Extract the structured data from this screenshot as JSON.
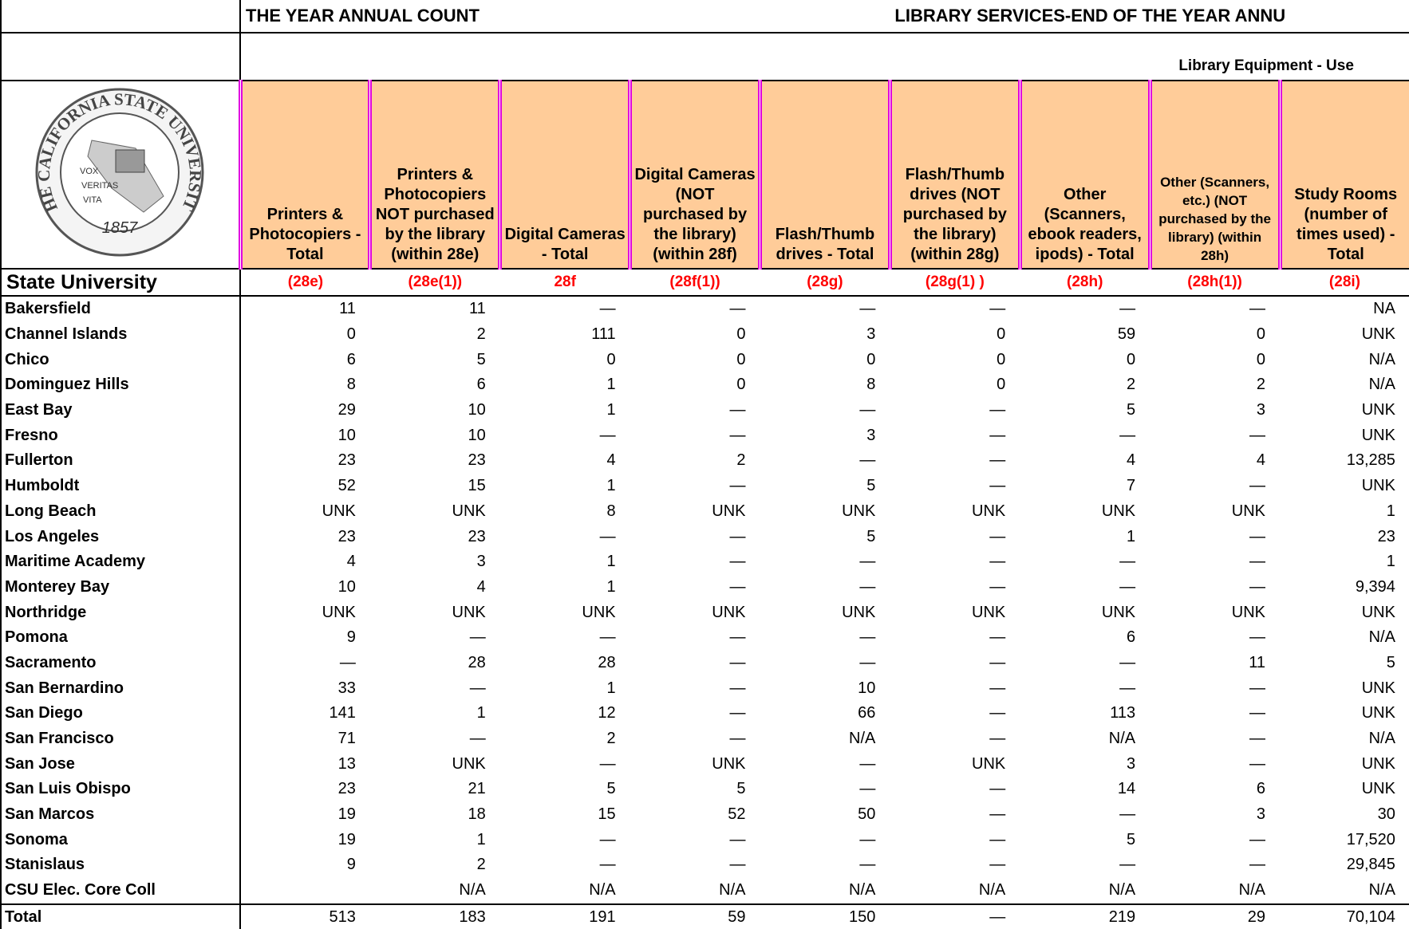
{
  "header": {
    "left_title": "THE YEAR ANNUAL COUNT",
    "right_title": "LIBRARY SERVICES-END OF THE YEAR ANNU",
    "section": "Library Equipment - Use"
  },
  "logo": {
    "ring": "THE CALIFORNIA STATE UNIVERSITY",
    "motto": [
      "VOX",
      "VERITAS",
      "VITA"
    ],
    "year": "1857"
  },
  "table": {
    "row_header": "State University",
    "columns": [
      {
        "label": "Printers & Photocopiers - Total",
        "code": "(28e)"
      },
      {
        "label": "Printers & Photocopiers NOT purchased by the library (within 28e)",
        "code": "(28e(1))"
      },
      {
        "label": "Digital Cameras - Total",
        "code": "28f"
      },
      {
        "label": "Digital Cameras (NOT purchased by the library) (within 28f)",
        "code": "(28f(1))"
      },
      {
        "label": "Flash/Thumb drives - Total",
        "code": "(28g)"
      },
      {
        "label": "Flash/Thumb drives (NOT purchased by the library) (within 28g)",
        "code": "(28g(1) )"
      },
      {
        "label": "Other (Scanners, ebook readers, ipods) - Total",
        "code": "(28h)"
      },
      {
        "label": "Other (Scanners, etc.) (NOT purchased by the library) (within 28h)",
        "code": "(28h(1))"
      },
      {
        "label": "Study Rooms (number of times used) - Total",
        "code": "(28i)"
      }
    ],
    "rows": [
      {
        "name": "Bakersfield",
        "values": [
          "11",
          "11",
          "—",
          "—",
          "—",
          "—",
          "—",
          "—",
          "NA"
        ]
      },
      {
        "name": "Channel Islands",
        "values": [
          "0",
          "2",
          "111",
          "0",
          "3",
          "0",
          "59",
          "0",
          "UNK"
        ]
      },
      {
        "name": "Chico",
        "values": [
          "6",
          "5",
          "0",
          "0",
          "0",
          "0",
          "0",
          "0",
          "N/A"
        ]
      },
      {
        "name": "Dominguez Hills",
        "values": [
          "8",
          "6",
          "1",
          "0",
          "8",
          "0",
          "2",
          "2",
          "N/A"
        ]
      },
      {
        "name": "East Bay",
        "values": [
          "29",
          "10",
          "1",
          "—",
          "—",
          "—",
          "5",
          "3",
          "UNK"
        ]
      },
      {
        "name": "Fresno",
        "values": [
          "10",
          "10",
          "—",
          "—",
          "3",
          "—",
          "—",
          "—",
          "UNK"
        ]
      },
      {
        "name": "Fullerton",
        "values": [
          "23",
          "23",
          "4",
          "2",
          "—",
          "—",
          "4",
          "4",
          "13,285"
        ]
      },
      {
        "name": "Humboldt",
        "values": [
          "52",
          "15",
          "1",
          "—",
          "5",
          "—",
          "7",
          "—",
          "UNK"
        ]
      },
      {
        "name": "Long Beach",
        "values": [
          "UNK",
          "UNK",
          "8",
          "UNK",
          "UNK",
          "UNK",
          "UNK",
          "UNK",
          "1"
        ]
      },
      {
        "name": "Los Angeles",
        "values": [
          "23",
          "23",
          "—",
          "—",
          "5",
          "—",
          "1",
          "—",
          "23"
        ]
      },
      {
        "name": "Maritime Academy",
        "values": [
          "4",
          "3",
          "1",
          "—",
          "—",
          "—",
          "—",
          "—",
          "1"
        ]
      },
      {
        "name": "Monterey Bay",
        "values": [
          "10",
          "4",
          "1",
          "—",
          "—",
          "—",
          "—",
          "—",
          "9,394"
        ]
      },
      {
        "name": "Northridge",
        "values": [
          "UNK",
          "UNK",
          "UNK",
          "UNK",
          "UNK",
          "UNK",
          "UNK",
          "UNK",
          "UNK"
        ]
      },
      {
        "name": "Pomona",
        "values": [
          "9",
          "—",
          "—",
          "—",
          "—",
          "—",
          "6",
          "—",
          "N/A"
        ]
      },
      {
        "name": "Sacramento",
        "values": [
          "—",
          "28",
          "28",
          "—",
          "—",
          "—",
          "—",
          "11",
          "5"
        ]
      },
      {
        "name": "San Bernardino",
        "values": [
          "33",
          "—",
          "1",
          "—",
          "10",
          "—",
          "—",
          "—",
          "UNK"
        ]
      },
      {
        "name": "San Diego",
        "values": [
          "141",
          "1",
          "12",
          "—",
          "66",
          "—",
          "113",
          "—",
          "UNK"
        ]
      },
      {
        "name": "San Francisco",
        "values": [
          "71",
          "—",
          "2",
          "—",
          "N/A",
          "—",
          "N/A",
          "—",
          "N/A"
        ]
      },
      {
        "name": "San Jose",
        "values": [
          "13",
          "UNK",
          "—",
          "UNK",
          "—",
          "UNK",
          "3",
          "—",
          "UNK"
        ]
      },
      {
        "name": "San Luis Obispo",
        "values": [
          "23",
          "21",
          "5",
          "5",
          "—",
          "—",
          "14",
          "6",
          "UNK"
        ]
      },
      {
        "name": "San Marcos",
        "values": [
          "19",
          "18",
          "15",
          "52",
          "50",
          "—",
          "—",
          "3",
          "30"
        ]
      },
      {
        "name": "Sonoma",
        "values": [
          "19",
          "1",
          "—",
          "—",
          "—",
          "—",
          "5",
          "—",
          "17,520"
        ]
      },
      {
        "name": "Stanislaus",
        "values": [
          "9",
          "2",
          "—",
          "—",
          "—",
          "—",
          "—",
          "—",
          "29,845"
        ]
      },
      {
        "name": "CSU Elec. Core Coll",
        "values": [
          null,
          "N/A",
          "N/A",
          "N/A",
          "N/A",
          "N/A",
          "N/A",
          "N/A",
          "N/A"
        ]
      },
      {
        "name": "Total",
        "values": [
          "513",
          "183",
          "191",
          "59",
          "150",
          "—",
          "219",
          "29",
          "70,104"
        ]
      }
    ]
  }
}
